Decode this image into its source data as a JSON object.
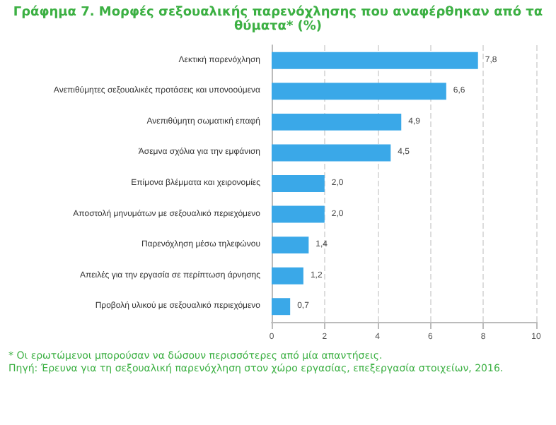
{
  "chart_data": {
    "type": "bar",
    "orientation": "horizontal",
    "title": "Γράφημα 7. Μορφές σεξουαλικής παρενόχλησης που αναφέρθηκαν από τα θύματα* (%)",
    "categories": [
      "Λεκτική παρενόχληση",
      "Ανεπιθύμητες σεξουαλικές προτάσεις και υπονοούμενα",
      "Ανεπιθύμητη σωματική επαφή",
      "Άσεμνα σχόλια για την εμφάνιση",
      "Επίμονα βλέμματα και χειρονομίες",
      "Αποστολή μηνυμάτων με σεξουαλικό περιεχόμενο",
      "Παρενόχληση μέσω τηλεφώνου",
      "Απειλές για την εργασία σε περίπτωση άρνησης",
      "Προβολή υλικού με σεξουαλικό περιεχόμενο"
    ],
    "values": [
      7.8,
      6.6,
      4.9,
      4.5,
      2.0,
      2.0,
      1.4,
      1.2,
      0.7
    ],
    "value_labels": [
      "7,8",
      "6,6",
      "4,9",
      "4,5",
      "2,0",
      "2,0",
      "1,4",
      "1,2",
      "0,7"
    ],
    "color": "#3aa8e8",
    "xlim": [
      0,
      10
    ],
    "xticks": [
      0,
      2,
      4,
      6,
      8,
      10
    ],
    "grid": "x",
    "annotations": [
      "* Οι ερωτώμενοι μπορούσαν να δώσουν περισσότερες από μία απαντήσεις.",
      "Πηγή: Έρευνα για τη σεξουαλική παρενόχληση στον χώρο εργασίας, επεξεργασία στοιχείων, 2016."
    ]
  }
}
